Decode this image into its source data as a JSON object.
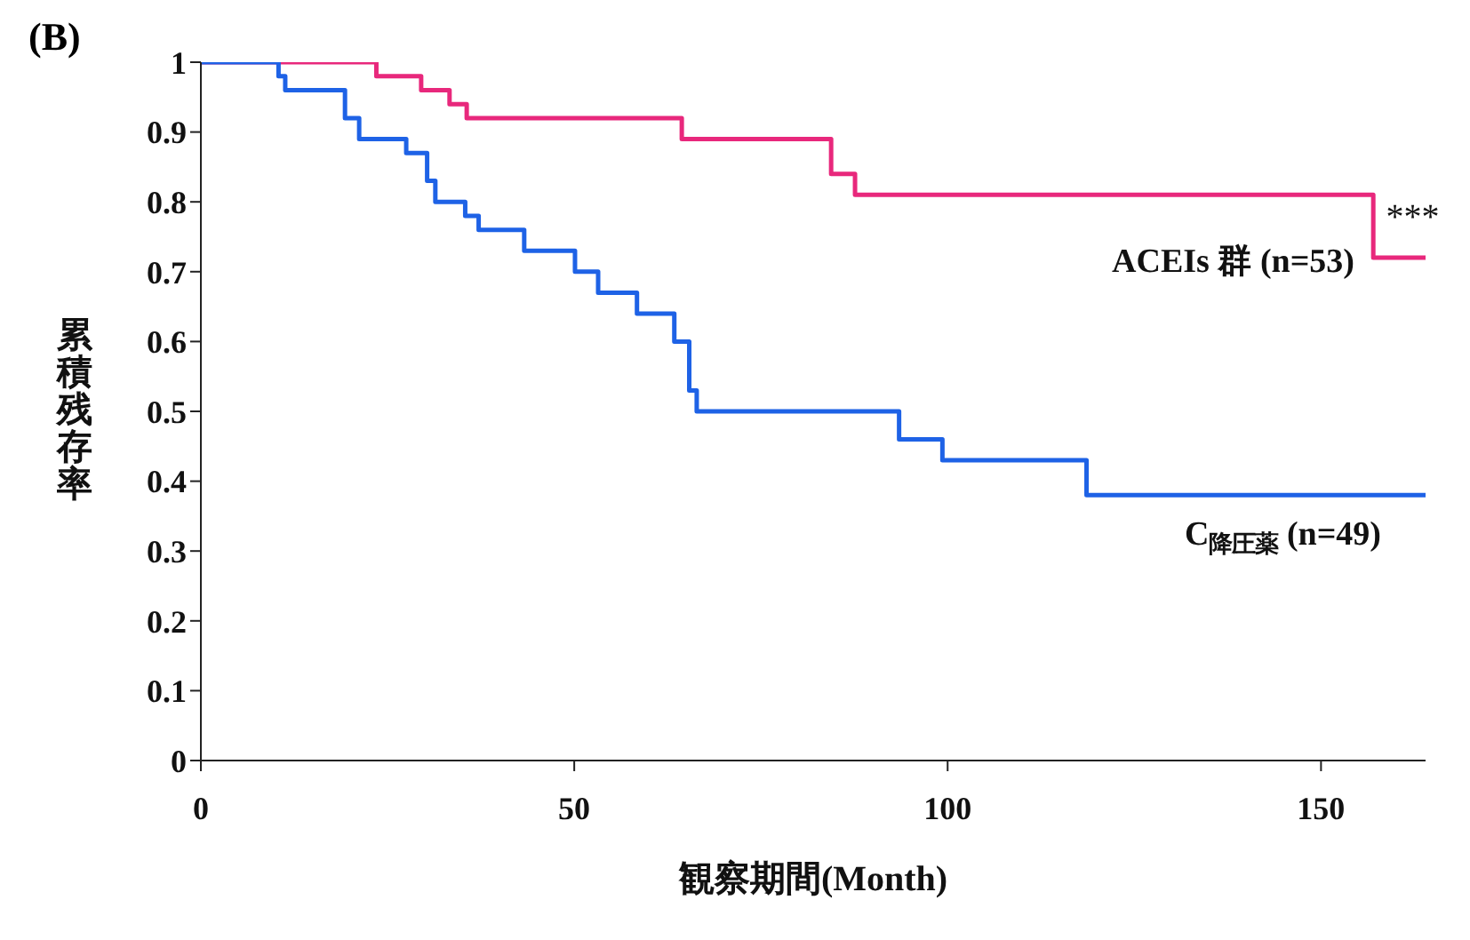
{
  "chart_data": {
    "type": "step",
    "title": "(B)",
    "xlabel": "観察期間(Month)",
    "ylabel": "累積残存率",
    "xlim": [
      0,
      164
    ],
    "xticks": [
      0,
      50,
      100,
      150
    ],
    "ylim": [
      0,
      1
    ],
    "yticks": [
      0,
      0.1,
      0.2,
      0.3,
      0.4,
      0.5,
      0.6,
      0.7,
      0.8,
      0.9,
      1
    ],
    "series": [
      {
        "name": "ACEIs 群 (n=53)",
        "color": "#e8287c",
        "x": [
          0,
          23.5,
          29.5,
          33.3,
          35.6,
          64.4,
          84.4,
          87.6,
          157,
          164
        ],
        "values": [
          1,
          0.98,
          0.96,
          0.94,
          0.92,
          0.89,
          0.84,
          0.81,
          0.72,
          0.72
        ]
      },
      {
        "name": "C$_{降圧薬}$ (n=49)",
        "color": "#1e62e6",
        "x": [
          0,
          10.4,
          11.3,
          19.3,
          21.2,
          27.5,
          30.3,
          31.4,
          35.4,
          37.2,
          43.3,
          50.1,
          53.2,
          58.4,
          63.4,
          65.4,
          66.4,
          93.5,
          99.3,
          118.6,
          164
        ],
        "values": [
          1,
          0.98,
          0.96,
          0.92,
          0.89,
          0.87,
          0.83,
          0.8,
          0.78,
          0.76,
          0.73,
          0.7,
          0.67,
          0.64,
          0.6,
          0.53,
          0.5,
          0.46,
          0.43,
          0.38,
          0.38
        ]
      }
    ],
    "annotations": [
      {
        "text": "***",
        "x": 157.5,
        "y": 0.78
      }
    ]
  }
}
